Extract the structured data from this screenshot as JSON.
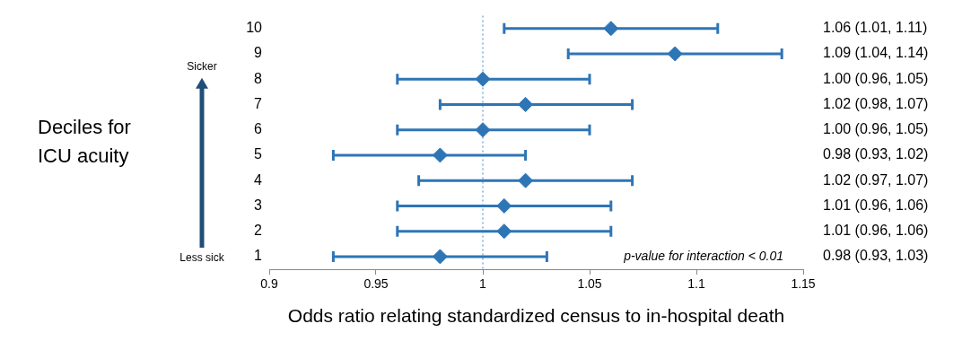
{
  "chart_data": {
    "type": "forest",
    "x_label": "Odds ratio relating standardized census to in-hospital death",
    "y_label": [
      "Deciles for",
      "ICU acuity"
    ],
    "y_top_label": "Sicker",
    "y_bottom_label": "Less sick",
    "annotation": "p-value for interaction < 0.01",
    "categories": [
      "1",
      "2",
      "3",
      "4",
      "5",
      "6",
      "7",
      "8",
      "9",
      "10"
    ],
    "values": [
      0.98,
      1.01,
      1.01,
      1.02,
      0.98,
      1.0,
      1.02,
      1.0,
      1.09,
      1.06
    ],
    "lower": [
      0.93,
      0.96,
      0.96,
      0.97,
      0.93,
      0.96,
      0.98,
      0.96,
      1.04,
      1.01
    ],
    "upper": [
      1.03,
      1.06,
      1.06,
      1.07,
      1.02,
      1.05,
      1.07,
      1.05,
      1.14,
      1.11
    ],
    "value_labels": [
      "0.98 (0.93, 1.03)",
      "1.01 (0.96, 1.06)",
      "1.01 (0.96, 1.06)",
      "1.02 (0.97, 1.07)",
      "0.98 (0.93, 1.02)",
      "1.00 (0.96, 1.05)",
      "1.02 (0.98, 1.07)",
      "1.00 (0.96, 1.05)",
      "1.09 (1.04, 1.14)",
      "1.06 (1.01, 1.11)"
    ],
    "data_labels": true,
    "reference_line": 1,
    "xlim": [
      0.9,
      1.15
    ],
    "xticks": [
      0.9,
      0.95,
      1,
      1.05,
      1.1,
      1.15
    ],
    "color": "#2e75b6",
    "marker": "diamond",
    "grid": false
  }
}
